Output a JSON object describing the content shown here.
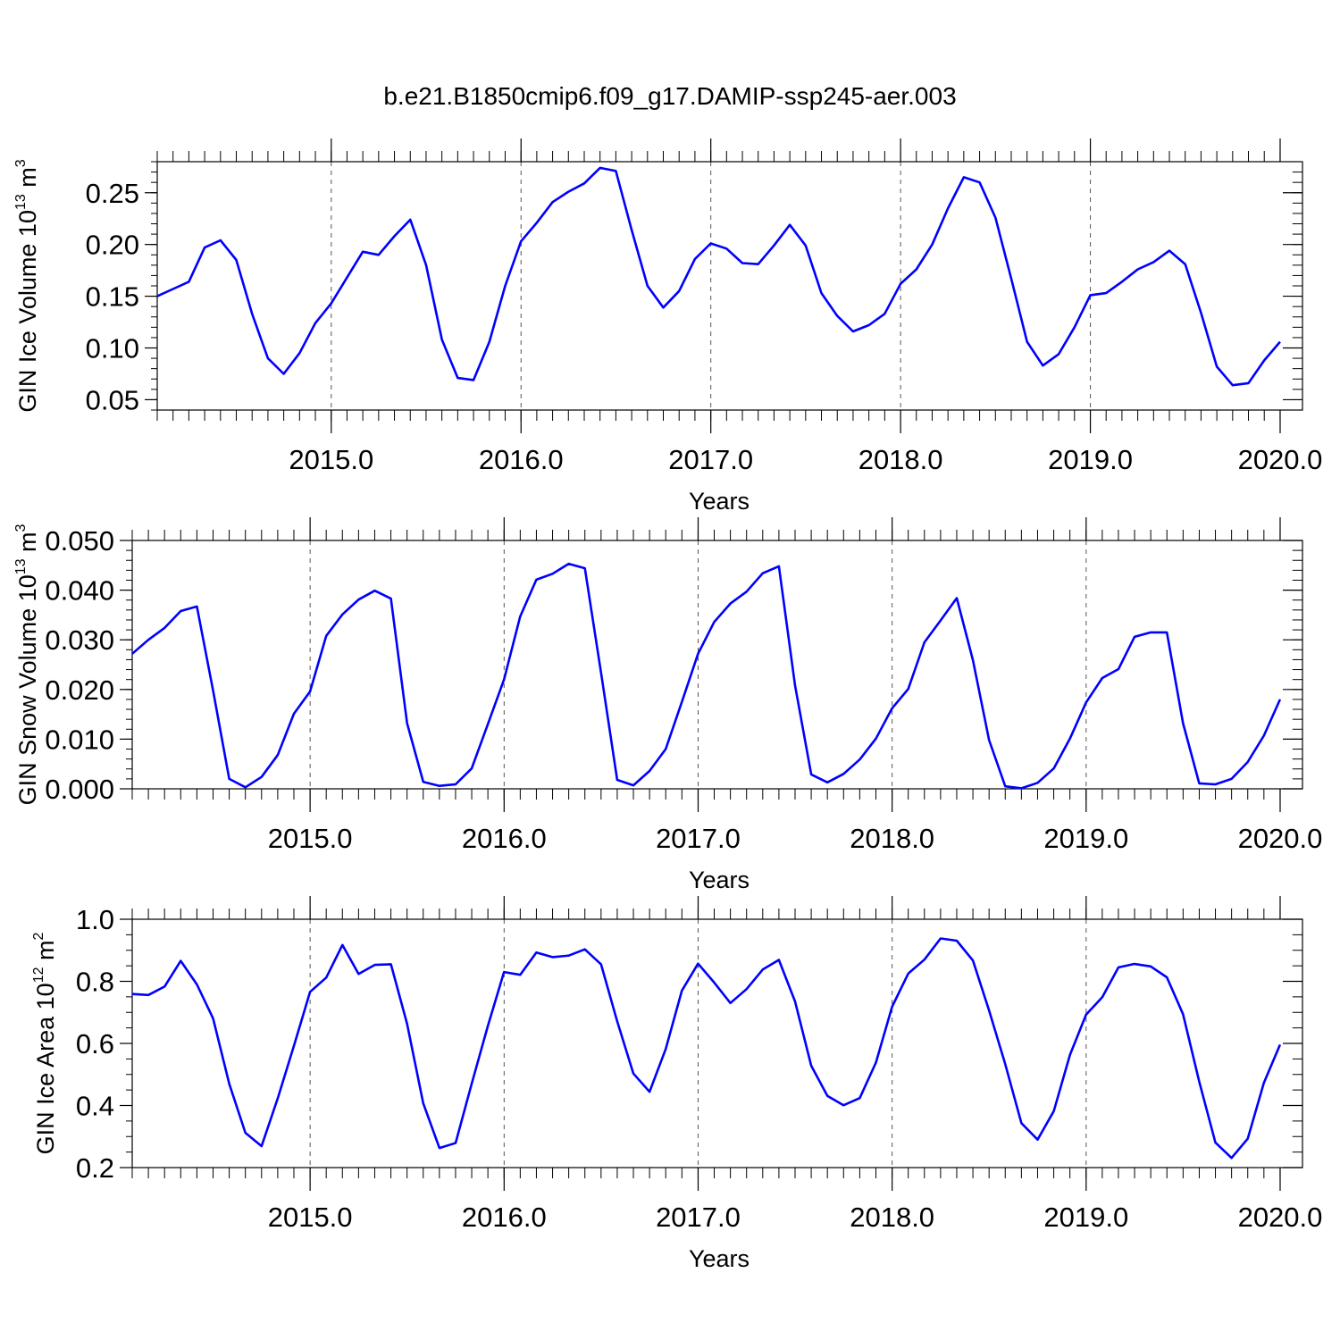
{
  "figure": {
    "title": "b.e21.B1850cmip6.f09_g17.DAMIP-ssp245-aer.003",
    "line_color": "#0000ff"
  },
  "chart_data": [
    {
      "type": "line",
      "xlabel": "Years",
      "ylabel_main": "GIN Ice Volume 10",
      "ylabel_exp": "13",
      "ylabel_unit": " m",
      "ylabel_unit_exp": "3",
      "xlim": [
        2014.083,
        2020.1
      ],
      "ylim": [
        0.04,
        0.28
      ],
      "yticks": [
        0.05,
        0.1,
        0.15,
        0.2,
        0.25
      ],
      "ytick_labels": [
        "0.05",
        "0.10",
        "0.15",
        "0.20",
        "0.25"
      ],
      "ytick_minor_step": 0.01,
      "xticks": [
        2015,
        2016,
        2017,
        2018,
        2019,
        2020
      ],
      "xtick_labels": [
        "2015.0",
        "2016.0",
        "2017.0",
        "2018.0",
        "2019.0",
        "2020.0"
      ],
      "x_minor_step": 0.0833333,
      "grid": "vertical dashed at major x ticks",
      "series": [
        {
          "x_start": 2014.083,
          "x_step": 0.0833333,
          "values": [
            0.15,
            0.157,
            0.164,
            0.197,
            0.204,
            0.185,
            0.133,
            0.09,
            0.075,
            0.095,
            0.124,
            0.143,
            0.168,
            0.193,
            0.19,
            0.208,
            0.224,
            0.18,
            0.108,
            0.071,
            0.069,
            0.106,
            0.16,
            0.203,
            0.221,
            0.241,
            0.251,
            0.259,
            0.274,
            0.271,
            0.214,
            0.16,
            0.139,
            0.155,
            0.186,
            0.201,
            0.196,
            0.182,
            0.181,
            0.199,
            0.219,
            0.199,
            0.153,
            0.131,
            0.116,
            0.122,
            0.133,
            0.162,
            0.176,
            0.2,
            0.235,
            0.265,
            0.26,
            0.226,
            0.167,
            0.106,
            0.083,
            0.094,
            0.12,
            0.151,
            0.153,
            0.164,
            0.176,
            0.183,
            0.194,
            0.181,
            0.134,
            0.082,
            0.064,
            0.066,
            0.088,
            0.106
          ]
        }
      ]
    },
    {
      "type": "line",
      "xlabel": "Years",
      "ylabel_main": "GIN Snow Volume 10",
      "ylabel_exp": "13",
      "ylabel_unit": " m",
      "ylabel_unit_exp": "3",
      "xlim": [
        2014.083,
        2020.1
      ],
      "ylim": [
        0.0,
        0.05
      ],
      "yticks": [
        0.0,
        0.01,
        0.02,
        0.03,
        0.04,
        0.05
      ],
      "ytick_labels": [
        "0.000",
        "0.010",
        "0.020",
        "0.030",
        "0.040",
        "0.050"
      ],
      "ytick_minor_step": 0.002,
      "xticks": [
        2015,
        2016,
        2017,
        2018,
        2019,
        2020
      ],
      "xtick_labels": [
        "2015.0",
        "2016.0",
        "2017.0",
        "2018.0",
        "2019.0",
        "2020.0"
      ],
      "x_minor_step": 0.0833333,
      "grid": "vertical dashed at major x ticks",
      "series": [
        {
          "x_start": 2014.083,
          "x_step": 0.0833333,
          "values": [
            0.0272,
            0.03,
            0.0324,
            0.0358,
            0.0367,
            0.0198,
            0.002,
            0.0003,
            0.0024,
            0.0068,
            0.0151,
            0.0196,
            0.0308,
            0.0351,
            0.0381,
            0.0399,
            0.0383,
            0.0132,
            0.0014,
            0.0006,
            0.0009,
            0.0041,
            0.013,
            0.022,
            0.0347,
            0.0421,
            0.0433,
            0.0453,
            0.0444,
            0.0234,
            0.0018,
            0.0007,
            0.0036,
            0.008,
            0.0175,
            0.0272,
            0.0336,
            0.0373,
            0.0397,
            0.0434,
            0.0448,
            0.0208,
            0.0029,
            0.0013,
            0.003,
            0.0059,
            0.0101,
            0.0162,
            0.0201,
            0.0295,
            0.0339,
            0.0384,
            0.0259,
            0.0098,
            0.0005,
            0.0001,
            0.0012,
            0.0041,
            0.0101,
            0.0174,
            0.0223,
            0.0241,
            0.0306,
            0.0315,
            0.0315,
            0.0132,
            0.0011,
            0.0009,
            0.002,
            0.0054,
            0.0107,
            0.018
          ]
        }
      ]
    },
    {
      "type": "line",
      "xlabel": "Years",
      "ylabel_main": "GIN Ice Area 10",
      "ylabel_exp": "12",
      "ylabel_unit": " m",
      "ylabel_unit_exp": "2",
      "xlim": [
        2014.083,
        2020.1
      ],
      "ylim": [
        0.2,
        1.0
      ],
      "yticks": [
        0.2,
        0.4,
        0.6,
        0.8,
        1.0
      ],
      "ytick_labels": [
        "0.2",
        "0.4",
        "0.6",
        "0.8",
        "1.0"
      ],
      "ytick_minor_step": 0.05,
      "xticks": [
        2015,
        2016,
        2017,
        2018,
        2019,
        2020
      ],
      "xtick_labels": [
        "2015.0",
        "2016.0",
        "2017.0",
        "2018.0",
        "2019.0",
        "2020.0"
      ],
      "x_minor_step": 0.0833333,
      "grid": "vertical dashed at major x ticks",
      "series": [
        {
          "x_start": 2014.083,
          "x_step": 0.0833333,
          "values": [
            0.759,
            0.756,
            0.783,
            0.866,
            0.79,
            0.681,
            0.47,
            0.312,
            0.269,
            0.423,
            0.592,
            0.766,
            0.812,
            0.917,
            0.824,
            0.853,
            0.855,
            0.663,
            0.407,
            0.263,
            0.279,
            0.47,
            0.656,
            0.83,
            0.821,
            0.893,
            0.878,
            0.883,
            0.903,
            0.855,
            0.671,
            0.503,
            0.444,
            0.582,
            0.77,
            0.857,
            0.796,
            0.73,
            0.775,
            0.838,
            0.869,
            0.735,
            0.528,
            0.431,
            0.401,
            0.424,
            0.538,
            0.718,
            0.825,
            0.87,
            0.938,
            0.931,
            0.867,
            0.706,
            0.533,
            0.343,
            0.29,
            0.382,
            0.563,
            0.693,
            0.749,
            0.845,
            0.856,
            0.848,
            0.813,
            0.694,
            0.477,
            0.281,
            0.231,
            0.293,
            0.473,
            0.596
          ]
        }
      ]
    }
  ]
}
